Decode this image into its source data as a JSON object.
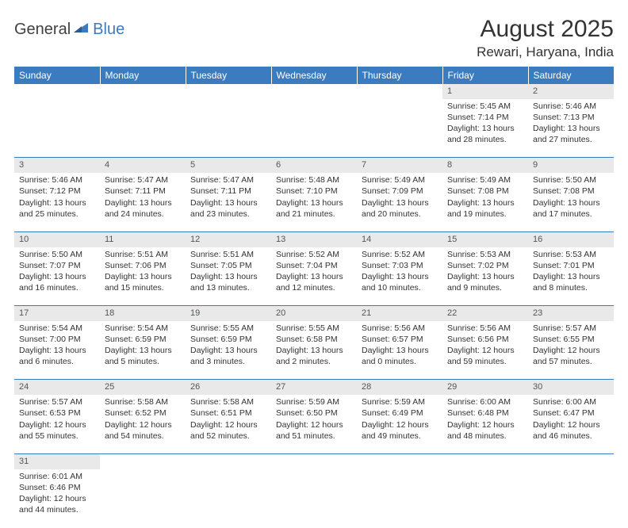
{
  "logo": {
    "text1": "General",
    "text2": "Blue"
  },
  "title": "August 2025",
  "location": "Rewari, Haryana, India",
  "colors": {
    "header_bg": "#3b7bbf",
    "header_text": "#ffffff",
    "daynum_bg": "#e9e9e9",
    "border": "#3b7bbf",
    "text": "#333333"
  },
  "weekdays": [
    "Sunday",
    "Monday",
    "Tuesday",
    "Wednesday",
    "Thursday",
    "Friday",
    "Saturday"
  ],
  "weeks": [
    [
      null,
      null,
      null,
      null,
      null,
      {
        "d": "1",
        "sr": "5:45 AM",
        "ss": "7:14 PM",
        "dl": "13 hours and 28 minutes."
      },
      {
        "d": "2",
        "sr": "5:46 AM",
        "ss": "7:13 PM",
        "dl": "13 hours and 27 minutes."
      }
    ],
    [
      {
        "d": "3",
        "sr": "5:46 AM",
        "ss": "7:12 PM",
        "dl": "13 hours and 25 minutes."
      },
      {
        "d": "4",
        "sr": "5:47 AM",
        "ss": "7:11 PM",
        "dl": "13 hours and 24 minutes."
      },
      {
        "d": "5",
        "sr": "5:47 AM",
        "ss": "7:11 PM",
        "dl": "13 hours and 23 minutes."
      },
      {
        "d": "6",
        "sr": "5:48 AM",
        "ss": "7:10 PM",
        "dl": "13 hours and 21 minutes."
      },
      {
        "d": "7",
        "sr": "5:49 AM",
        "ss": "7:09 PM",
        "dl": "13 hours and 20 minutes."
      },
      {
        "d": "8",
        "sr": "5:49 AM",
        "ss": "7:08 PM",
        "dl": "13 hours and 19 minutes."
      },
      {
        "d": "9",
        "sr": "5:50 AM",
        "ss": "7:08 PM",
        "dl": "13 hours and 17 minutes."
      }
    ],
    [
      {
        "d": "10",
        "sr": "5:50 AM",
        "ss": "7:07 PM",
        "dl": "13 hours and 16 minutes."
      },
      {
        "d": "11",
        "sr": "5:51 AM",
        "ss": "7:06 PM",
        "dl": "13 hours and 15 minutes."
      },
      {
        "d": "12",
        "sr": "5:51 AM",
        "ss": "7:05 PM",
        "dl": "13 hours and 13 minutes."
      },
      {
        "d": "13",
        "sr": "5:52 AM",
        "ss": "7:04 PM",
        "dl": "13 hours and 12 minutes."
      },
      {
        "d": "14",
        "sr": "5:52 AM",
        "ss": "7:03 PM",
        "dl": "13 hours and 10 minutes."
      },
      {
        "d": "15",
        "sr": "5:53 AM",
        "ss": "7:02 PM",
        "dl": "13 hours and 9 minutes."
      },
      {
        "d": "16",
        "sr": "5:53 AM",
        "ss": "7:01 PM",
        "dl": "13 hours and 8 minutes."
      }
    ],
    [
      {
        "d": "17",
        "sr": "5:54 AM",
        "ss": "7:00 PM",
        "dl": "13 hours and 6 minutes."
      },
      {
        "d": "18",
        "sr": "5:54 AM",
        "ss": "6:59 PM",
        "dl": "13 hours and 5 minutes."
      },
      {
        "d": "19",
        "sr": "5:55 AM",
        "ss": "6:59 PM",
        "dl": "13 hours and 3 minutes."
      },
      {
        "d": "20",
        "sr": "5:55 AM",
        "ss": "6:58 PM",
        "dl": "13 hours and 2 minutes."
      },
      {
        "d": "21",
        "sr": "5:56 AM",
        "ss": "6:57 PM",
        "dl": "13 hours and 0 minutes."
      },
      {
        "d": "22",
        "sr": "5:56 AM",
        "ss": "6:56 PM",
        "dl": "12 hours and 59 minutes."
      },
      {
        "d": "23",
        "sr": "5:57 AM",
        "ss": "6:55 PM",
        "dl": "12 hours and 57 minutes."
      }
    ],
    [
      {
        "d": "24",
        "sr": "5:57 AM",
        "ss": "6:53 PM",
        "dl": "12 hours and 55 minutes."
      },
      {
        "d": "25",
        "sr": "5:58 AM",
        "ss": "6:52 PM",
        "dl": "12 hours and 54 minutes."
      },
      {
        "d": "26",
        "sr": "5:58 AM",
        "ss": "6:51 PM",
        "dl": "12 hours and 52 minutes."
      },
      {
        "d": "27",
        "sr": "5:59 AM",
        "ss": "6:50 PM",
        "dl": "12 hours and 51 minutes."
      },
      {
        "d": "28",
        "sr": "5:59 AM",
        "ss": "6:49 PM",
        "dl": "12 hours and 49 minutes."
      },
      {
        "d": "29",
        "sr": "6:00 AM",
        "ss": "6:48 PM",
        "dl": "12 hours and 48 minutes."
      },
      {
        "d": "30",
        "sr": "6:00 AM",
        "ss": "6:47 PM",
        "dl": "12 hours and 46 minutes."
      }
    ],
    [
      {
        "d": "31",
        "sr": "6:01 AM",
        "ss": "6:46 PM",
        "dl": "12 hours and 44 minutes."
      },
      null,
      null,
      null,
      null,
      null,
      null
    ]
  ],
  "labels": {
    "sunrise": "Sunrise:",
    "sunset": "Sunset:",
    "daylight": "Daylight:"
  }
}
